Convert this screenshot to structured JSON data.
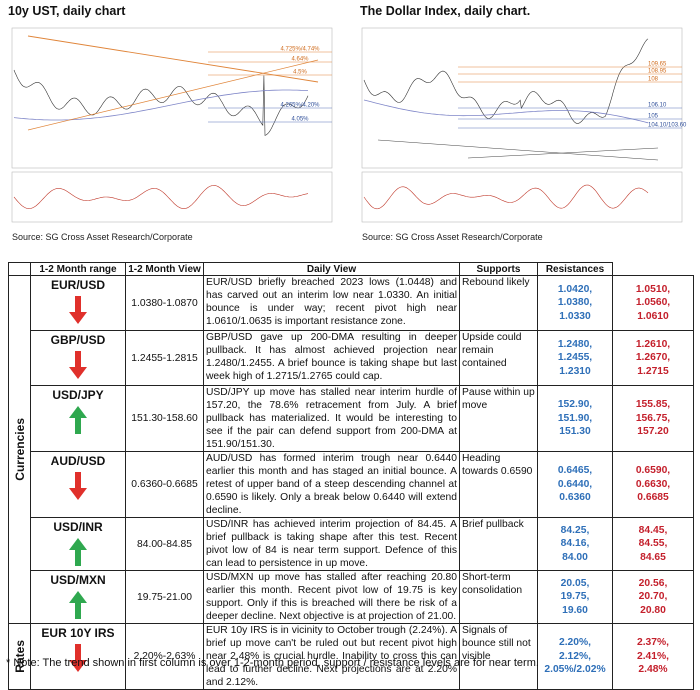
{
  "charts": [
    {
      "title": "10y UST, daily chart",
      "source": "Source: SG Cross Asset Research/Corporate",
      "annotations": [
        "4.725%/4.74%",
        "4.64%",
        "4.5%",
        "4.265%/4.20%",
        "4.05%"
      ]
    },
    {
      "title": "The Dollar Index, daily chart.",
      "source": "Source: SG Cross Asset Research/Corporate",
      "annotations": [
        "109.65",
        "108.95",
        "108",
        "106.10",
        "105",
        "104.10/103.60"
      ]
    }
  ],
  "table": {
    "header": [
      "1-2 Month range",
      "1-2 Month View",
      "Daily View",
      "Supports",
      "Resistances"
    ],
    "groups": [
      {
        "label": "Currencies",
        "rows": [
          {
            "name": "EUR/USD",
            "range": "1.0380-1.0870",
            "view": "EUR/USD briefly breached 2023 lows (1.0448) and has carved out an interim low near 1.0330. An initial bounce is under way; recent pivot high near 1.0610/1.0635 is important resistance zone.",
            "daily": "Rebound likely",
            "supports": [
              "1.0420,",
              "1.0380,",
              "1.0330"
            ],
            "resistances": [
              "1.0510,",
              "1.0560,",
              "1.0610"
            ]
          },
          {
            "name": "GBP/USD",
            "range": "1.2455-1.2815",
            "view": "GBP/USD gave up 200-DMA resulting in deeper pullback. It has almost achieved projection near 1.2480/1.2455. A brief bounce is taking shape but last week high of 1.2715/1.2765 could cap.",
            "daily": "Upside could remain contained",
            "supports": [
              "1.2480,",
              "1.2455,",
              "1.2310"
            ],
            "resistances": [
              "1.2610,",
              "1.2670,",
              "1.2715"
            ]
          },
          {
            "name": "USD/JPY",
            "range": "151.30-158.60",
            "view": "USD/JPY up move has stalled near interim hurdle of 157.20, the 78.6% retracement from July. A brief pullback has materialized. It would be interesting to see if the pair can defend support from 200-DMA at 151.90/151.30.",
            "daily": "Pause within up move",
            "supports": [
              "152.90,",
              "151.90,",
              "151.30"
            ],
            "resistances": [
              "155.85,",
              "156.75,",
              "157.20"
            ]
          },
          {
            "name": "AUD/USD",
            "range": "0.6360-0.6685",
            "view": "AUD/USD has formed interim trough near 0.6440 earlier this month and has staged an initial bounce. A retest of upper band of a steep descending channel at 0.6590 is likely. Only a break below 0.6440 will extend decline.",
            "daily": "Heading towards 0.6590",
            "supports": [
              "0.6465,",
              "0.6440,",
              "0.6360"
            ],
            "resistances": [
              "0.6590,",
              "0.6630,",
              "0.6685"
            ]
          },
          {
            "name": "USD/INR",
            "range": "84.00-84.85",
            "view": "USD/INR has achieved interim projection of 84.45. A brief pullback is taking shape after this test. Recent pivot low of 84 is near term support. Defence of this can lead to persistence in up move.",
            "daily": "Brief pullback",
            "supports": [
              "84.25,",
              "84.16,",
              "84.00"
            ],
            "resistances": [
              "84.45,",
              "84.55,",
              "84.65"
            ]
          },
          {
            "name": "USD/MXN",
            "range": "19.75-21.00",
            "view": "USD/MXN up move has stalled after reaching 20.80 earlier this month. Recent pivot low of 19.75 is key support. Only if this is breached will there be risk of a deeper decline. Next objective is at projection of 21.00.",
            "daily": "Short-term consolidation",
            "supports": [
              "20.05,",
              "19.75,",
              "19.60"
            ],
            "resistances": [
              "20.56,",
              "20.70,",
              "20.80"
            ]
          }
        ]
      },
      {
        "label": "Rates",
        "rows": [
          {
            "name": "EUR 10Y IRS",
            "range": "2.20%-2.63%",
            "view": "EUR 10y IRS is in vicinity to October trough (2.24%). A brief up move can't be ruled out but recent pivot high near 2.48% is crucial hurdle. Inability to cross this can lead to further decline. Next projections are at 2.20% and 2.12%.",
            "daily": "Signals of bounce still not visible",
            "supports": [
              "2.20%,",
              "2.12%,",
              "2.05%/2.02%"
            ],
            "resistances": [
              "2.37%,",
              "2.41%,",
              "2.48%"
            ]
          }
        ]
      }
    ]
  },
  "note": "* Note: The trend shown in first column is over 1-2-month period, support / resistance levels are for near term."
}
